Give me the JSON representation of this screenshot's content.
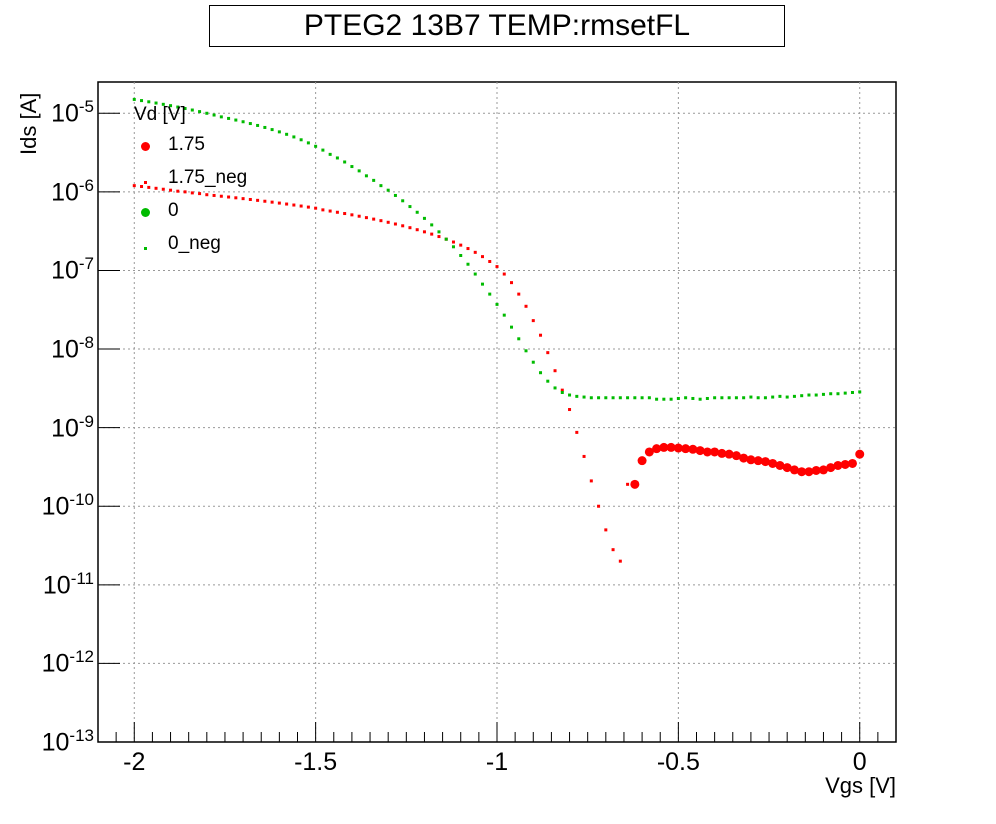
{
  "chart_data": {
    "type": "scatter",
    "title": "PTEG2 13B7 TEMP:rmsetFL",
    "xlabel": "Vgs [V]",
    "ylabel": "Ids [A]",
    "xlim": [
      -2.1,
      0.1
    ],
    "ylim": [
      1e-13,
      2.5e-05
    ],
    "y_scale": "log",
    "x_ticks": [
      "-2",
      "-1.5",
      "-1",
      "-0.5",
      "0"
    ],
    "y_ticks": [
      {
        "base": "10",
        "exp": "-5"
      },
      {
        "base": "10",
        "exp": "-6"
      },
      {
        "base": "10",
        "exp": "-7"
      },
      {
        "base": "10",
        "exp": "-8"
      },
      {
        "base": "10",
        "exp": "-9"
      },
      {
        "base": "10",
        "exp": "-10"
      },
      {
        "base": "10",
        "exp": "-11"
      },
      {
        "base": "10",
        "exp": "-12"
      },
      {
        "base": "10",
        "exp": "-13"
      }
    ],
    "grid": true,
    "legend_title": "Vd [V]",
    "legend_position": "top-left",
    "series": [
      {
        "name": "1.75",
        "color": "#ff0000",
        "marker": "circle",
        "points": [
          [
            -0.62,
            1.9e-10
          ],
          [
            -0.6,
            3.8e-10
          ],
          [
            -0.58,
            4.9e-10
          ],
          [
            -0.56,
            5.4e-10
          ],
          [
            -0.54,
            5.6e-10
          ],
          [
            -0.52,
            5.6e-10
          ],
          [
            -0.5,
            5.5e-10
          ],
          [
            -0.48,
            5.4e-10
          ],
          [
            -0.46,
            5.3e-10
          ],
          [
            -0.44,
            5.1e-10
          ],
          [
            -0.42,
            4.9e-10
          ],
          [
            -0.4,
            4.9e-10
          ],
          [
            -0.38,
            4.7e-10
          ],
          [
            -0.36,
            4.6e-10
          ],
          [
            -0.34,
            4.4e-10
          ],
          [
            -0.32,
            4.1e-10
          ],
          [
            -0.3,
            3.9e-10
          ],
          [
            -0.28,
            3.8e-10
          ],
          [
            -0.26,
            3.7e-10
          ],
          [
            -0.24,
            3.5e-10
          ],
          [
            -0.22,
            3.3e-10
          ],
          [
            -0.2,
            3.1e-10
          ],
          [
            -0.18,
            2.9e-10
          ],
          [
            -0.16,
            2.75e-10
          ],
          [
            -0.14,
            2.75e-10
          ],
          [
            -0.12,
            2.85e-10
          ],
          [
            -0.1,
            2.9e-10
          ],
          [
            -0.08,
            3.1e-10
          ],
          [
            -0.06,
            3.3e-10
          ],
          [
            -0.04,
            3.4e-10
          ],
          [
            -0.02,
            3.5e-10
          ],
          [
            0.0,
            4.6e-10
          ]
        ]
      },
      {
        "name": "1.75_neg",
        "color": "#ff0000",
        "marker": "small-square",
        "points": [
          [
            -2.0,
            1.2e-06
          ],
          [
            -1.98,
            1.17e-06
          ],
          [
            -1.96,
            1.14e-06
          ],
          [
            -1.94,
            1.11e-06
          ],
          [
            -1.92,
            1.08e-06
          ],
          [
            -1.9,
            1.05e-06
          ],
          [
            -1.88,
            1.02e-06
          ],
          [
            -1.86,
            1e-06
          ],
          [
            -1.84,
            9.7e-07
          ],
          [
            -1.82,
            9.5e-07
          ],
          [
            -1.8,
            9.2e-07
          ],
          [
            -1.78,
            9e-07
          ],
          [
            -1.76,
            8.8e-07
          ],
          [
            -1.74,
            8.6e-07
          ],
          [
            -1.72,
            8.4e-07
          ],
          [
            -1.7,
            8.2e-07
          ],
          [
            -1.68,
            8e-07
          ],
          [
            -1.66,
            7.8e-07
          ],
          [
            -1.64,
            7.6e-07
          ],
          [
            -1.62,
            7.4e-07
          ],
          [
            -1.6,
            7.2e-07
          ],
          [
            -1.58,
            7e-07
          ],
          [
            -1.56,
            6.8e-07
          ],
          [
            -1.54,
            6.6e-07
          ],
          [
            -1.52,
            6.4e-07
          ],
          [
            -1.5,
            6.2e-07
          ],
          [
            -1.48,
            5.9e-07
          ],
          [
            -1.46,
            5.7e-07
          ],
          [
            -1.44,
            5.5e-07
          ],
          [
            -1.42,
            5.3e-07
          ],
          [
            -1.4,
            5.1e-07
          ],
          [
            -1.38,
            4.9e-07
          ],
          [
            -1.36,
            4.7e-07
          ],
          [
            -1.34,
            4.5e-07
          ],
          [
            -1.32,
            4.3e-07
          ],
          [
            -1.3,
            4.1e-07
          ],
          [
            -1.28,
            3.9e-07
          ],
          [
            -1.26,
            3.7e-07
          ],
          [
            -1.24,
            3.5e-07
          ],
          [
            -1.22,
            3.3e-07
          ],
          [
            -1.2,
            3.1e-07
          ],
          [
            -1.18,
            2.9e-07
          ],
          [
            -1.16,
            2.7e-07
          ],
          [
            -1.14,
            2.5e-07
          ],
          [
            -1.12,
            2.3e-07
          ],
          [
            -1.1,
            2.1e-07
          ],
          [
            -1.08,
            1.9e-07
          ],
          [
            -1.06,
            1.7e-07
          ],
          [
            -1.04,
            1.5e-07
          ],
          [
            -1.02,
            1.3e-07
          ],
          [
            -1.0,
            1.12e-07
          ],
          [
            -0.98,
            9e-08
          ],
          [
            -0.96,
            7e-08
          ],
          [
            -0.94,
            5e-08
          ],
          [
            -0.92,
            3.5e-08
          ],
          [
            -0.9,
            2.3e-08
          ],
          [
            -0.88,
            1.5e-08
          ],
          [
            -0.86,
            9e-09
          ],
          [
            -0.84,
            5.3e-09
          ],
          [
            -0.82,
            3e-09
          ],
          [
            -0.8,
            1.7e-09
          ],
          [
            -0.78,
            8.7e-10
          ],
          [
            -0.76,
            4.3e-10
          ],
          [
            -0.74,
            2.1e-10
          ],
          [
            -0.72,
            1e-10
          ],
          [
            -0.7,
            5e-11
          ],
          [
            -0.68,
            2.8e-11
          ],
          [
            -0.66,
            2e-11
          ],
          [
            -0.64,
            1.9e-10
          ],
          [
            -0.62,
            1.9e-10
          ]
        ]
      },
      {
        "name": "0",
        "color": "#00bb00",
        "marker": "circle",
        "points": []
      },
      {
        "name": "0_neg",
        "color": "#00bb00",
        "marker": "small-square",
        "points": [
          [
            -2.0,
            1.5e-05
          ],
          [
            -1.98,
            1.45e-05
          ],
          [
            -1.96,
            1.4e-05
          ],
          [
            -1.94,
            1.35e-05
          ],
          [
            -1.92,
            1.3e-05
          ],
          [
            -1.9,
            1.25e-05
          ],
          [
            -1.88,
            1.2e-05
          ],
          [
            -1.86,
            1.15e-05
          ],
          [
            -1.84,
            1.1e-05
          ],
          [
            -1.82,
            1.05e-05
          ],
          [
            -1.8,
            1e-05
          ],
          [
            -1.78,
            9.5e-06
          ],
          [
            -1.76,
            9e-06
          ],
          [
            -1.74,
            8.6e-06
          ],
          [
            -1.72,
            8.2e-06
          ],
          [
            -1.7,
            7.8e-06
          ],
          [
            -1.68,
            7.4e-06
          ],
          [
            -1.66,
            7e-06
          ],
          [
            -1.64,
            6.6e-06
          ],
          [
            -1.62,
            6.2e-06
          ],
          [
            -1.6,
            5.8e-06
          ],
          [
            -1.58,
            5.4e-06
          ],
          [
            -1.56,
            5e-06
          ],
          [
            -1.54,
            4.6e-06
          ],
          [
            -1.52,
            4.2e-06
          ],
          [
            -1.5,
            3.8e-06
          ],
          [
            -1.48,
            3.4e-06
          ],
          [
            -1.46,
            3e-06
          ],
          [
            -1.44,
            2.7e-06
          ],
          [
            -1.42,
            2.4e-06
          ],
          [
            -1.4,
            2.1e-06
          ],
          [
            -1.38,
            1.85e-06
          ],
          [
            -1.36,
            1.6e-06
          ],
          [
            -1.34,
            1.4e-06
          ],
          [
            -1.32,
            1.2e-06
          ],
          [
            -1.3,
            1.05e-06
          ],
          [
            -1.28,
            9e-07
          ],
          [
            -1.26,
            7.7e-07
          ],
          [
            -1.24,
            6.5e-07
          ],
          [
            -1.22,
            5.5e-07
          ],
          [
            -1.2,
            4.6e-07
          ],
          [
            -1.18,
            3.8e-07
          ],
          [
            -1.16,
            3.1e-07
          ],
          [
            -1.14,
            2.5e-07
          ],
          [
            -1.12,
            2e-07
          ],
          [
            -1.1,
            1.55e-07
          ],
          [
            -1.08,
            1.2e-07
          ],
          [
            -1.06,
            9e-08
          ],
          [
            -1.04,
            6.7e-08
          ],
          [
            -1.02,
            5e-08
          ],
          [
            -1.0,
            3.7e-08
          ],
          [
            -0.98,
            2.7e-08
          ],
          [
            -0.96,
            1.9e-08
          ],
          [
            -0.94,
            1.35e-08
          ],
          [
            -0.92,
            9.5e-09
          ],
          [
            -0.9,
            6.8e-09
          ],
          [
            -0.88,
            5e-09
          ],
          [
            -0.86,
            3.9e-09
          ],
          [
            -0.84,
            3.2e-09
          ],
          [
            -0.82,
            2.8e-09
          ],
          [
            -0.8,
            2.6e-09
          ],
          [
            -0.78,
            2.5e-09
          ],
          [
            -0.76,
            2.45e-09
          ],
          [
            -0.74,
            2.4e-09
          ],
          [
            -0.72,
            2.4e-09
          ],
          [
            -0.7,
            2.4e-09
          ],
          [
            -0.68,
            2.4e-09
          ],
          [
            -0.66,
            2.4e-09
          ],
          [
            -0.64,
            2.4e-09
          ],
          [
            -0.62,
            2.4e-09
          ],
          [
            -0.6,
            2.4e-09
          ],
          [
            -0.58,
            2.4e-09
          ],
          [
            -0.56,
            2.3e-09
          ],
          [
            -0.54,
            2.3e-09
          ],
          [
            -0.52,
            2.3e-09
          ],
          [
            -0.5,
            2.35e-09
          ],
          [
            -0.48,
            2.4e-09
          ],
          [
            -0.46,
            2.35e-09
          ],
          [
            -0.44,
            2.3e-09
          ],
          [
            -0.42,
            2.35e-09
          ],
          [
            -0.4,
            2.4e-09
          ],
          [
            -0.38,
            2.4e-09
          ],
          [
            -0.36,
            2.4e-09
          ],
          [
            -0.34,
            2.4e-09
          ],
          [
            -0.32,
            2.4e-09
          ],
          [
            -0.3,
            2.45e-09
          ],
          [
            -0.28,
            2.4e-09
          ],
          [
            -0.26,
            2.4e-09
          ],
          [
            -0.24,
            2.45e-09
          ],
          [
            -0.22,
            2.5e-09
          ],
          [
            -0.2,
            2.45e-09
          ],
          [
            -0.18,
            2.5e-09
          ],
          [
            -0.16,
            2.55e-09
          ],
          [
            -0.14,
            2.6e-09
          ],
          [
            -0.12,
            2.6e-09
          ],
          [
            -0.1,
            2.65e-09
          ],
          [
            -0.08,
            2.7e-09
          ],
          [
            -0.06,
            2.7e-09
          ],
          [
            -0.04,
            2.75e-09
          ],
          [
            -0.02,
            2.8e-09
          ],
          [
            0.0,
            2.85e-09
          ]
        ]
      }
    ]
  }
}
